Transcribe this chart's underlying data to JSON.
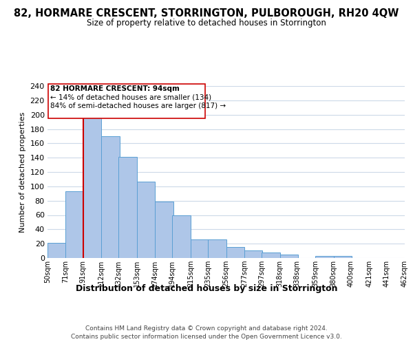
{
  "title": "82, HORMARE CRESCENT, STORRINGTON, PULBOROUGH, RH20 4QW",
  "subtitle": "Size of property relative to detached houses in Storrington",
  "xlabel": "Distribution of detached houses by size in Storrington",
  "ylabel": "Number of detached properties",
  "bar_left_edges": [
    50,
    71,
    91,
    112,
    132,
    153,
    174,
    194,
    215,
    235,
    256,
    277,
    297,
    318,
    338,
    359,
    380,
    400,
    421,
    441
  ],
  "bar_heights": [
    21,
    93,
    199,
    170,
    141,
    107,
    79,
    60,
    26,
    26,
    15,
    11,
    8,
    5,
    0,
    3,
    3,
    0,
    0,
    0
  ],
  "bin_width": 21,
  "bar_color": "#aec6e8",
  "bar_edge_color": "#5a9fd4",
  "vline_x": 91,
  "vline_color": "#cc0000",
  "ann_line1": "82 HORMARE CRESCENT: 94sqm",
  "ann_line2": "← 14% of detached houses are smaller (134)",
  "ann_line3": "84% of semi-detached houses are larger (817) →",
  "annotation_box_color": "#ffffff",
  "annotation_box_edge": "#cc0000",
  "tick_labels": [
    "50sqm",
    "71sqm",
    "91sqm",
    "112sqm",
    "132sqm",
    "153sqm",
    "174sqm",
    "194sqm",
    "215sqm",
    "235sqm",
    "256sqm",
    "277sqm",
    "297sqm",
    "318sqm",
    "338sqm",
    "359sqm",
    "380sqm",
    "400sqm",
    "421sqm",
    "441sqm",
    "462sqm"
  ],
  "ylim": [
    0,
    240
  ],
  "yticks": [
    0,
    20,
    40,
    60,
    80,
    100,
    120,
    140,
    160,
    180,
    200,
    220,
    240
  ],
  "footer1": "Contains HM Land Registry data © Crown copyright and database right 2024.",
  "footer2": "Contains public sector information licensed under the Open Government Licence v3.0.",
  "bg_color": "#ffffff",
  "grid_color": "#ccd9e8"
}
